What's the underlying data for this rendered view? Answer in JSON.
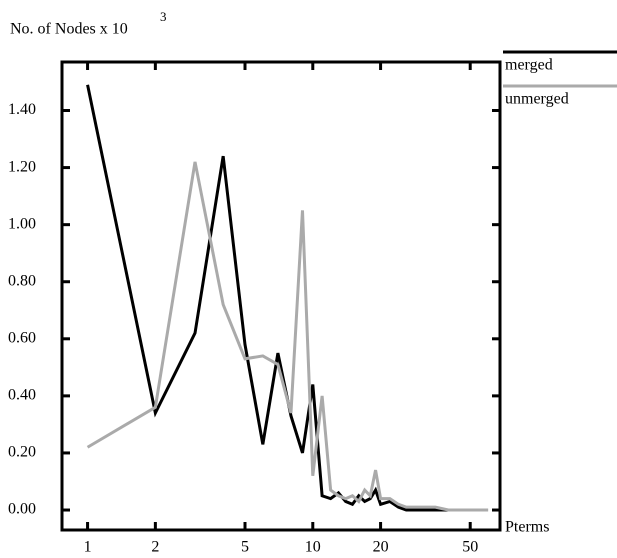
{
  "chart_data": {
    "type": "line",
    "ylabel": "No. of Nodes x 10",
    "ylabel_exponent": "3",
    "xlabel": "Pterms",
    "x": [
      1,
      2,
      3,
      4,
      5,
      6,
      7,
      8,
      9,
      10,
      11,
      12,
      13,
      14,
      15,
      16,
      17,
      18,
      19,
      20,
      22,
      24,
      26,
      30,
      35,
      40,
      50,
      60
    ],
    "series": [
      {
        "name": "merged",
        "color": "#000000",
        "values": [
          1.49,
          0.34,
          0.62,
          1.24,
          0.58,
          0.23,
          0.55,
          0.33,
          0.2,
          0.44,
          0.05,
          0.04,
          0.06,
          0.03,
          0.02,
          0.05,
          0.03,
          0.04,
          0.07,
          0.02,
          0.03,
          0.01,
          0.0,
          0.0,
          0.0,
          0.0,
          0.0,
          0.0
        ]
      },
      {
        "name": "unmerged",
        "color": "#aaaaaa",
        "values": [
          0.22,
          0.36,
          1.22,
          0.72,
          0.53,
          0.54,
          0.51,
          0.34,
          1.05,
          0.12,
          0.4,
          0.07,
          0.05,
          0.04,
          0.05,
          0.03,
          0.07,
          0.05,
          0.14,
          0.04,
          0.04,
          0.02,
          0.01,
          0.01,
          0.01,
          0.0,
          0.0,
          0.0
        ]
      }
    ],
    "xscale": "log",
    "xlim": [
      0.77,
      67.8
    ],
    "xticks": [
      1,
      2,
      5,
      10,
      20,
      50
    ],
    "ylim": [
      -0.07,
      1.57
    ],
    "yticks": [
      {
        "value": 0,
        "label": "0.00"
      },
      {
        "value": 0.2,
        "label": "0.20"
      },
      {
        "value": 0.4,
        "label": "0.40"
      },
      {
        "value": 0.6,
        "label": "0.60"
      },
      {
        "value": 0.8,
        "label": "0.80"
      },
      {
        "value": 1.0,
        "label": "1.00"
      },
      {
        "value": 1.2,
        "label": "1.20"
      },
      {
        "value": 1.4,
        "label": "1.40"
      }
    ],
    "grid": false,
    "legend": "top-right-outside"
  }
}
